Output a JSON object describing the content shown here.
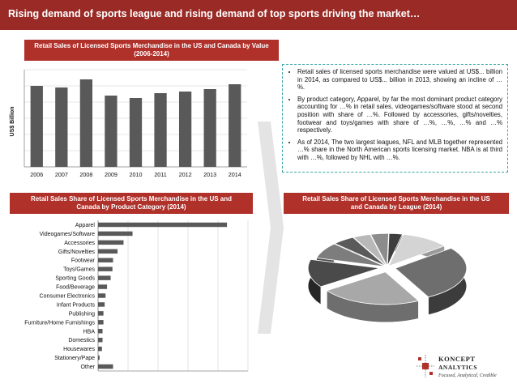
{
  "header": {
    "title": "Rising demand of sports league and rising demand of top sports driving the market…"
  },
  "chart_bar": {
    "title_line1": "Retail Sales of Licensed Sports Merchandise in the US and Canada by Value",
    "title_line2": "(2006-2014)"
  },
  "chart_category": {
    "title_line1": "Retail Sales Share of Licensed Sports Merchandise in the US and",
    "title_line2": "Canada by Product Category (2014)"
  },
  "chart_league": {
    "title_line1": "Retail Sales Share of Licensed Sports Merchandise in the US",
    "title_line2": "and Canada by League (2014)"
  },
  "bullets": [
    "Retail sales of licensed sports merchandise were valued at US$... billion in 2014, as compared to US$... billion in 2013, showing an incline of …%.",
    "By product category, Apparel, by far the most dominant product category accounting for …% in retail sales, videogames/software stood at second position with share of …%. Followed by accessories, gifts/novelties, footwear and toys/games with share of …%, …%, …% and …% respectively.",
    "As of 2014, The two largest leagues, NFL and MLB together represented …% share in the North American sports licensing market. NBA is at third with …%, followed by NHL with …%."
  ],
  "logo": {
    "name_line1": "KONCEPT",
    "name_line2": "ANALYTICS",
    "tagline": "Focused, Analytical, Credible"
  },
  "colors": {
    "brand_red": "#9a2a25",
    "header_red": "#b0302a",
    "bar_gray": "#595959"
  },
  "chart_data": [
    {
      "type": "bar",
      "title": "Retail Sales of Licensed Sports Merchandise in the US and Canada by Value (2006-2014)",
      "xlabel": "",
      "ylabel": "US$ Billion",
      "categories": [
        "2006",
        "2007",
        "2008",
        "2009",
        "2010",
        "2011",
        "2012",
        "2013",
        "2014"
      ],
      "values": [
        10.0,
        9.8,
        10.8,
        8.8,
        8.5,
        9.1,
        9.3,
        9.6,
        10.2
      ],
      "ylim": [
        0,
        12
      ],
      "grid": true
    },
    {
      "type": "bar",
      "orientation": "horizontal",
      "title": "Retail Sales Share of Licensed Sports Merchandise in the US and Canada by Product Category (2014)",
      "categories": [
        "Apparel",
        "Videogames/Software",
        "Accessories",
        "Gifts/Novelties",
        "Footwear",
        "Toys/Games",
        "Sporting Goods",
        "Food/Beverage",
        "Consumer Electronics",
        "Infant Products",
        "Publishing",
        "Furniture/Home Furnishings",
        "HBA",
        "Domestics",
        "Housewares",
        "Stationery/Pape",
        "Other"
      ],
      "values": [
        43.0,
        11.5,
        8.5,
        6.5,
        5.0,
        4.8,
        4.2,
        3.0,
        2.5,
        2.2,
        1.8,
        1.8,
        1.5,
        1.5,
        1.3,
        0.5,
        5.0
      ],
      "xlim": [
        0,
        50
      ],
      "grid": true
    },
    {
      "type": "pie",
      "style": "3d-exploded",
      "title": "Retail Sales Share of Licensed Sports Merchandise in the US and Canada by League (2014)",
      "values": [
        28,
        23,
        14,
        8,
        5,
        4,
        4,
        3,
        11
      ]
    }
  ]
}
